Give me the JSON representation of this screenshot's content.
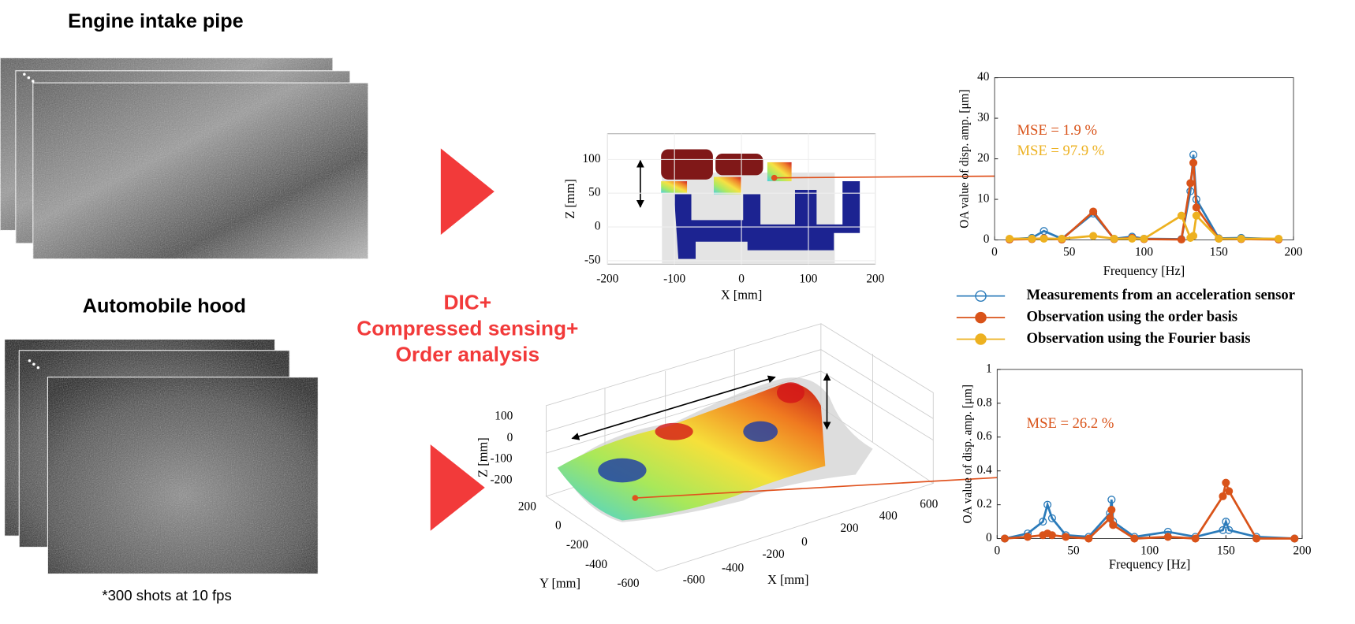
{
  "labels": {
    "engine": "Engine intake pipe",
    "hood": "Automobile hood",
    "shots": "*300 shots at 10 fps",
    "method": [
      "DIC+",
      "Compressed sensing+",
      "Order analysis"
    ]
  },
  "pointcloud_top": {
    "xlabel": "X [mm]",
    "ylabel": "Z [mm]",
    "xlim": [
      -200,
      200
    ],
    "ylim": [
      -55,
      138
    ],
    "xticks": [
      -200,
      -100,
      0,
      100,
      200
    ],
    "yticks": [
      100,
      50,
      0,
      -50
    ]
  },
  "pointcloud_bottom": {
    "xlabel": "X [mm]",
    "ylabel": "Y [mm]",
    "zlabel": "Z [mm]",
    "xticks": [
      -600,
      -400,
      -200,
      0,
      200,
      400,
      600
    ],
    "yticks": [
      200,
      0,
      -200,
      -400,
      -600
    ],
    "zticks": [
      100,
      0,
      -100,
      -200
    ]
  },
  "chart_data": [
    {
      "type": "line",
      "xlabel": "Frequency [Hz]",
      "ylabel": "OA value of disp. amp. [μm]",
      "xlim": [
        0,
        200
      ],
      "ylim": [
        0,
        40
      ],
      "xticks": [
        0,
        50,
        100,
        150,
        200
      ],
      "yticks": [
        0,
        10,
        20,
        30,
        40
      ],
      "x": [
        10,
        25,
        33,
        45,
        66,
        80,
        92,
        100,
        125,
        131,
        133,
        135,
        150,
        165,
        190
      ],
      "series": [
        {
          "name": "Measurements from an acceleration sensor",
          "color": "#2b7bba",
          "filled": false,
          "values": [
            0.2,
            0.5,
            2.2,
            0.3,
            6.5,
            0.3,
            0.8,
            0.3,
            0.2,
            12,
            21,
            10,
            0.4,
            0.5,
            0.2
          ]
        },
        {
          "name": "Observation using the order basis",
          "color": "#d95319",
          "filled": true,
          "values": [
            0.1,
            0.2,
            0.4,
            0.1,
            7,
            0.2,
            0.5,
            0.2,
            0.1,
            14,
            19,
            8,
            0.3,
            0.2,
            0.1
          ]
        },
        {
          "name": "Observation using the Fourier basis",
          "color": "#edb120",
          "filled": true,
          "values": [
            0.3,
            0.3,
            0.3,
            0.3,
            1,
            0.3,
            0.3,
            0.3,
            6,
            0.5,
            1,
            6,
            0.3,
            0.3,
            0.3
          ]
        }
      ],
      "annotations": [
        {
          "text": "MSE = 1.9 %",
          "color": "#d95319"
        },
        {
          "text": "MSE = 97.9 %",
          "color": "#edb120"
        }
      ]
    },
    {
      "type": "line",
      "xlabel": "Frequency [Hz]",
      "ylabel": "OA value of disp. amp. [μm]",
      "xlim": [
        0,
        200
      ],
      "ylim": [
        0,
        1
      ],
      "xticks": [
        0,
        50,
        100,
        150,
        200
      ],
      "yticks": [
        0,
        0.2,
        0.4,
        0.6,
        0.8,
        1
      ],
      "x": [
        5,
        20,
        30,
        33,
        36,
        45,
        60,
        74,
        75,
        76,
        90,
        112,
        130,
        148,
        150,
        152,
        170,
        195
      ],
      "series": [
        {
          "color": "#2b7bba",
          "filled": false,
          "values": [
            0,
            0.03,
            0.1,
            0.2,
            0.12,
            0.02,
            0.01,
            0.15,
            0.23,
            0.1,
            0.01,
            0.04,
            0.01,
            0.05,
            0.1,
            0.05,
            0.01,
            0
          ]
        },
        {
          "color": "#d95319",
          "filled": true,
          "values": [
            0,
            0.01,
            0.02,
            0.03,
            0.02,
            0.01,
            0,
            0.12,
            0.17,
            0.08,
            0,
            0.01,
            0,
            0.25,
            0.33,
            0.28,
            0,
            0
          ]
        }
      ],
      "annotations": [
        {
          "text": "MSE = 26.2 %",
          "color": "#d95319"
        }
      ]
    }
  ]
}
